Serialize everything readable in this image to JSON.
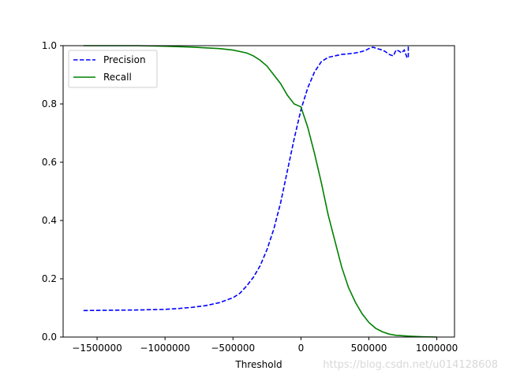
{
  "chart_data": {
    "type": "line",
    "xlabel": "Threshold",
    "ylabel": "",
    "xlim": [
      -1750000,
      1130000
    ],
    "ylim": [
      0,
      1
    ],
    "xticks": [
      -1500000,
      -1000000,
      -500000,
      0,
      500000,
      1000000
    ],
    "xtick_labels": [
      "−1500000",
      "−1000000",
      "−500000",
      "0",
      "500000",
      "1000000"
    ],
    "yticks": [
      0,
      0.2,
      0.4,
      0.6,
      0.8,
      1.0
    ],
    "ytick_labels": [
      "0.0",
      "0.2",
      "0.4",
      "0.6",
      "0.8",
      "1.0"
    ],
    "grid": false,
    "legend_position": "top-left",
    "series": [
      {
        "name": "Precision",
        "color": "#0000ff",
        "style": "dashed",
        "x": [
          -1600000,
          -1400000,
          -1200000,
          -1000000,
          -900000,
          -800000,
          -700000,
          -600000,
          -500000,
          -450000,
          -400000,
          -350000,
          -300000,
          -250000,
          -200000,
          -150000,
          -100000,
          -50000,
          0,
          50000,
          100000,
          150000,
          200000,
          250000,
          300000,
          350000,
          400000,
          450000,
          480000,
          500000,
          530000,
          560000,
          600000,
          620000,
          650000,
          660000,
          680000,
          700000,
          720000,
          740000,
          760000,
          780000,
          790000,
          790000
        ],
        "y": [
          0.091,
          0.092,
          0.093,
          0.095,
          0.098,
          0.102,
          0.108,
          0.118,
          0.135,
          0.15,
          0.175,
          0.205,
          0.245,
          0.3,
          0.37,
          0.46,
          0.57,
          0.68,
          0.78,
          0.855,
          0.91,
          0.945,
          0.96,
          0.965,
          0.97,
          0.972,
          0.975,
          0.98,
          0.985,
          0.99,
          0.995,
          0.99,
          0.985,
          0.98,
          0.97,
          0.968,
          0.965,
          0.985,
          0.982,
          0.975,
          0.985,
          0.96,
          0.958,
          1.0
        ]
      },
      {
        "name": "Recall",
        "color": "#008000",
        "style": "solid",
        "x": [
          -1600000,
          -1400000,
          -1200000,
          -1000000,
          -800000,
          -600000,
          -500000,
          -400000,
          -350000,
          -300000,
          -250000,
          -200000,
          -150000,
          -100000,
          -50000,
          0,
          50000,
          100000,
          150000,
          200000,
          250000,
          300000,
          350000,
          400000,
          450000,
          500000,
          550000,
          600000,
          650000,
          700000,
          800000,
          900000,
          1000000
        ],
        "y": [
          1.0,
          1.0,
          1.0,
          0.998,
          0.995,
          0.99,
          0.985,
          0.975,
          0.965,
          0.95,
          0.93,
          0.9,
          0.87,
          0.83,
          0.8,
          0.79,
          0.72,
          0.63,
          0.53,
          0.42,
          0.33,
          0.24,
          0.17,
          0.12,
          0.08,
          0.05,
          0.03,
          0.018,
          0.01,
          0.006,
          0.003,
          0.001,
          0.0
        ]
      }
    ]
  },
  "watermark": "https://blog.csdn.net/u014128608"
}
